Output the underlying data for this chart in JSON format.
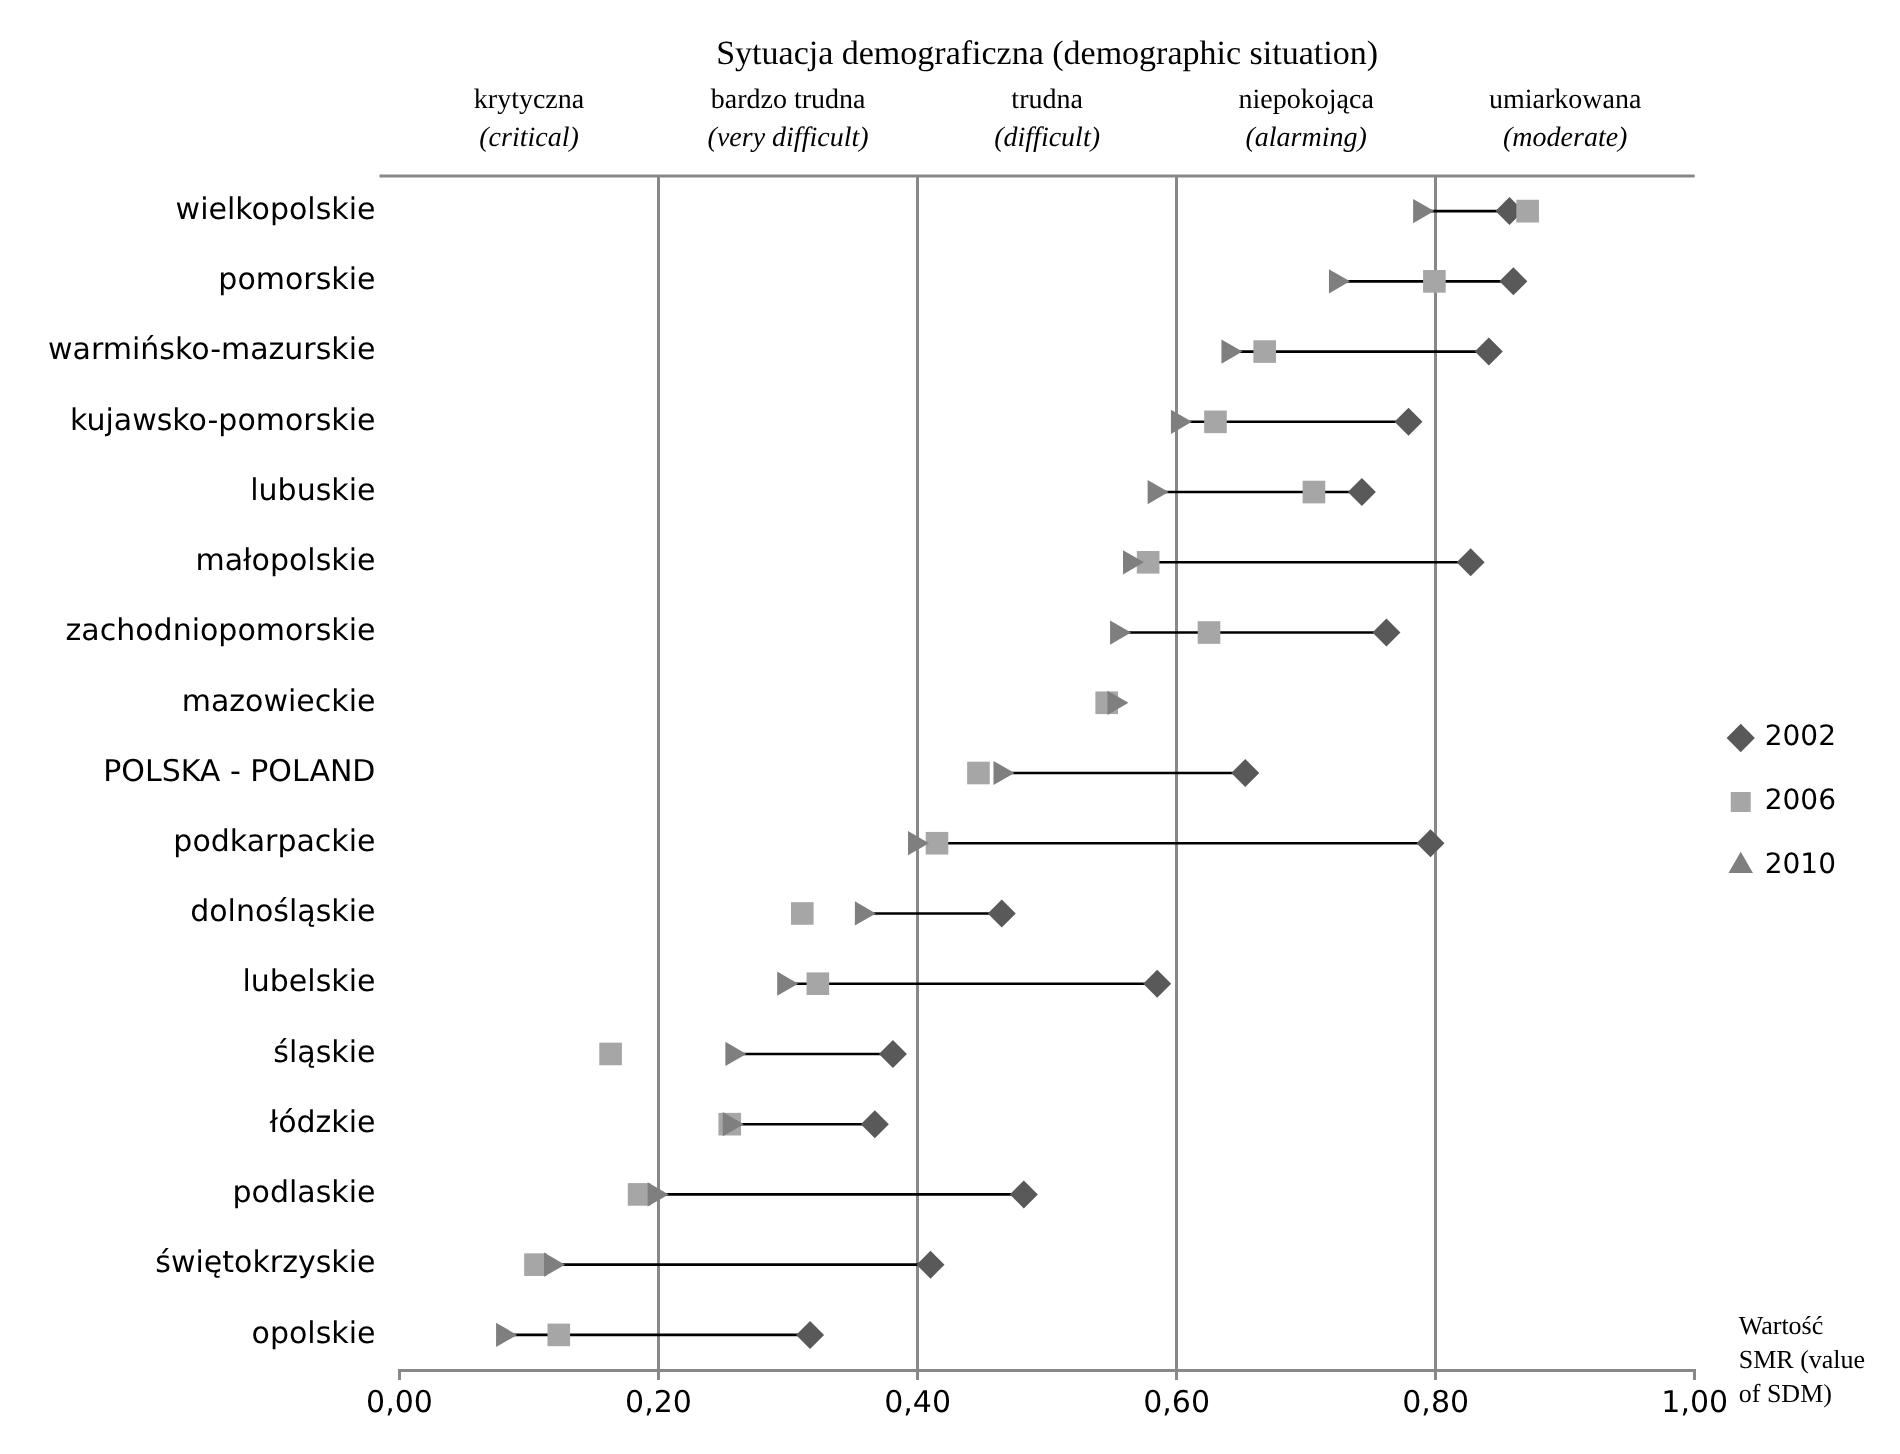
{
  "chart_data": {
    "type": "scatter",
    "title": "Sytuacja demograficzna (demographic situation)",
    "xlabel": "Wartość SMR (value of SDM)",
    "categories": [
      "wielkopolskie",
      "pomorskie",
      "warmińsko-mazurskie",
      "kujawsko-pomorskie",
      "lubuskie",
      "małopolskie",
      "zachodniopomorskie",
      "mazowieckie",
      "POLSKA - POLAND",
      "podkarpackie",
      "dolnośląskie",
      "lubelskie",
      "śląskie",
      "łódzkie",
      "podlaskie",
      "świętokrzyskie",
      "opolskie"
    ],
    "series": [
      {
        "name": "2002",
        "color": "#595959",
        "marker": "diamond",
        "values": [
          0.857,
          0.86,
          0.841,
          0.779,
          0.743,
          0.827,
          0.762,
          null,
          0.653,
          0.796,
          0.465,
          0.585,
          0.381,
          0.367,
          0.482,
          0.41,
          0.317
        ]
      },
      {
        "name": "2006",
        "color": "#a6a6a6",
        "marker": "square",
        "values": [
          0.871,
          0.799,
          0.668,
          0.63,
          0.706,
          0.578,
          0.625,
          0.546,
          0.447,
          0.415,
          0.311,
          0.323,
          0.163,
          0.255,
          0.185,
          0.105,
          0.123
        ]
      },
      {
        "name": "2010",
        "color": "#7f7f7f",
        "marker": "triangle",
        "values": [
          0.788,
          0.723,
          0.64,
          0.601,
          0.583,
          0.564,
          0.554,
          0.552,
          0.464,
          0.398,
          0.357,
          0.297,
          0.257,
          0.255,
          0.197,
          0.117,
          0.08
        ]
      }
    ],
    "xlim": [
      0,
      1
    ],
    "xticks": [
      {
        "value": 0,
        "label": "0,00"
      },
      {
        "value": 0.2,
        "label": "0,20"
      },
      {
        "value": 0.4,
        "label": "0,40"
      },
      {
        "value": 0.6,
        "label": "0,60"
      },
      {
        "value": 0.8,
        "label": "0,80"
      },
      {
        "value": 1,
        "label": "1,00"
      }
    ],
    "annotations": [
      "krytyczna\n(critical)",
      "bardzo trudna\n(very difficult)",
      "trudna\n(difficult)",
      "niepokojąca\n(alarming)",
      "umiarkowana\n(moderate)"
    ],
    "orientation": "horizontal",
    "grid": "x",
    "legend": "right"
  }
}
